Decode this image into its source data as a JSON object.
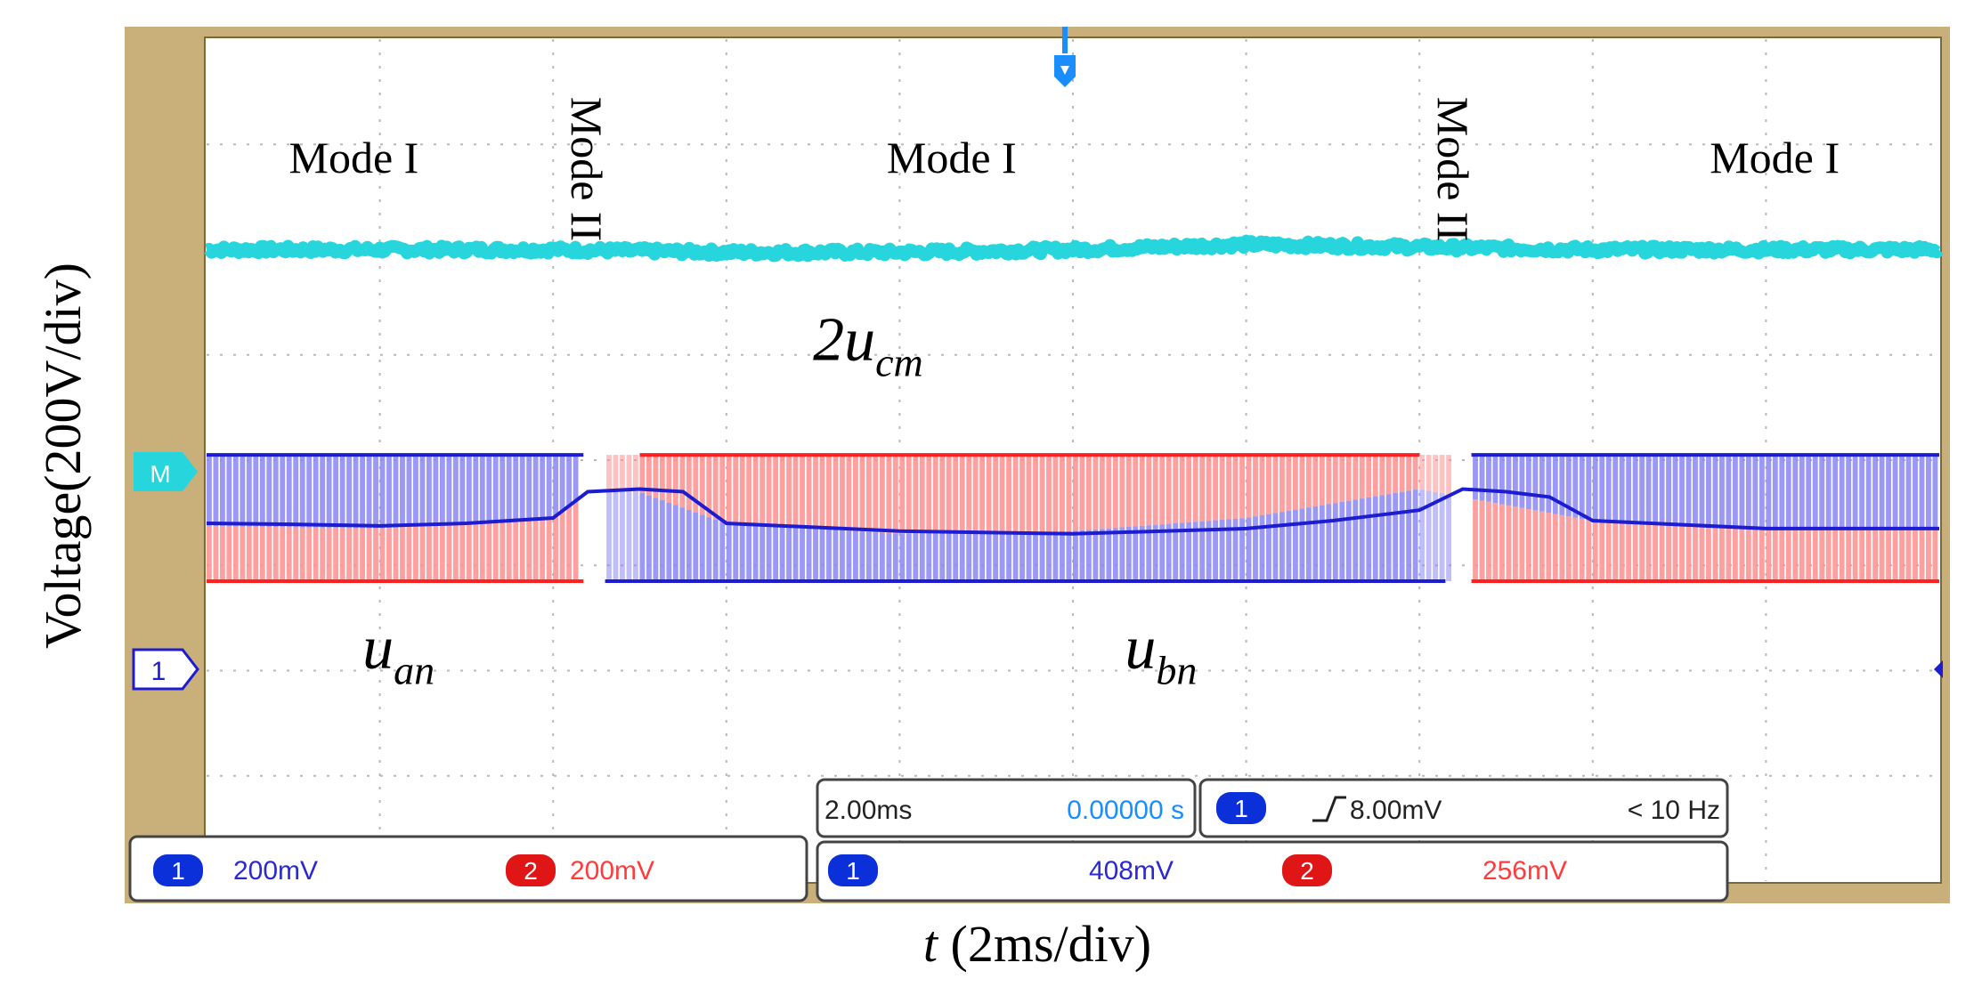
{
  "chart_data": {
    "type": "line",
    "title": "",
    "xlabel": "t (2ms/div)",
    "ylabel": "Voltage(200V/div)",
    "x_unit": "ms",
    "y_unit": "V",
    "grid": true,
    "xlim": [
      0,
      20
    ],
    "ylim": [
      -800,
      800
    ],
    "x_divisions": 10,
    "y_divisions": 8,
    "x_scale_per_div": 2,
    "y_scale_per_div": 200,
    "mode_labels": [
      {
        "text": "Mode I",
        "orientation": "horizontal",
        "x": 1.7
      },
      {
        "text": "Mode II",
        "orientation": "vertical",
        "x": 4.4
      },
      {
        "text": "Mode I",
        "orientation": "horizontal",
        "x": 8.6
      },
      {
        "text": "Mode II",
        "orientation": "vertical",
        "x": 14.4
      },
      {
        "text": "Mode I",
        "orientation": "horizontal",
        "x": 18.1
      }
    ],
    "series": [
      {
        "name": "2u_cm",
        "label_main": "2u",
        "label_sub": "cm",
        "color": "#26d6dc",
        "kind": "line",
        "label_x": 7.0,
        "label_y": 190,
        "x": [
          0,
          2,
          4,
          6,
          8,
          10,
          12,
          14,
          16,
          18,
          20
        ],
        "y": [
          400,
          400,
          400,
          395,
          395,
          400,
          410,
          405,
          400,
          400,
          400
        ]
      },
      {
        "name": "u_an",
        "label_main": "u",
        "label_sub": "an",
        "color": "#ff6a6a",
        "kind": "pwm",
        "label_x": 1.8,
        "label_y": -395,
        "x": [
          0,
          2,
          4,
          4.4,
          6,
          8,
          10,
          12,
          14,
          14.5,
          16,
          18,
          20
        ],
        "upper": [
          -50,
          -50,
          -50,
          0,
          10,
          10,
          10,
          10,
          10,
          0,
          -50,
          -50,
          -50
        ],
        "lower": [
          -230,
          -230,
          -230,
          -230,
          -230,
          -230,
          -230,
          -230,
          -230,
          -230,
          -230,
          -230,
          -230
        ],
        "envelope_top": [
          10,
          10,
          10,
          10,
          10,
          10,
          10,
          10,
          10,
          10,
          10,
          10,
          10
        ]
      },
      {
        "name": "u_bn",
        "label_main": "u",
        "label_sub": "bn",
        "color": "#4a48f0",
        "kind": "pwm",
        "label_x": 10.6,
        "label_y": -395,
        "x": [
          0,
          2,
          4,
          4.4,
          5,
          6,
          8,
          10,
          12,
          14,
          14.5,
          16,
          18,
          20
        ],
        "upper": [
          10,
          10,
          10,
          10,
          10,
          10,
          10,
          10,
          10,
          10,
          10,
          10,
          10,
          10
        ],
        "lower": [
          -230,
          -230,
          -230,
          -230,
          -230,
          -230,
          -230,
          -230,
          -230,
          -230,
          -230,
          -230,
          -230,
          -230
        ],
        "mid": [
          -125,
          -130,
          -110,
          -60,
          -60,
          -120,
          -140,
          -135,
          -110,
          -55,
          -70,
          -115,
          -130,
          -130
        ]
      },
      {
        "name": "u_an_mid",
        "label_main": "",
        "label_sub": "",
        "color": "#1c1cd0",
        "kind": "line",
        "x": [
          0,
          1,
          2,
          3,
          4,
          4.4,
          5,
          5.5,
          6,
          8,
          10,
          12,
          13,
          14,
          14.5,
          15,
          15.5,
          16,
          18,
          20
        ],
        "y": [
          -120,
          -122,
          -125,
          -120,
          -110,
          -60,
          -55,
          -60,
          -120,
          -135,
          -140,
          -130,
          -115,
          -95,
          -55,
          -60,
          -70,
          -115,
          -130,
          -130
        ]
      }
    ]
  },
  "scope": {
    "markers": {
      "channel1": "1",
      "math": "M"
    },
    "readout_left": {
      "ch1_badge": "1",
      "ch1_value": "200mV",
      "ch2_badge": "2",
      "ch2_value": "200mV"
    },
    "readout_timebase": {
      "time_div": "2.00ms",
      "position": "0.00000 s"
    },
    "readout_trigger": {
      "badge": "1",
      "level": "8.00mV",
      "freq": "< 10 Hz"
    },
    "readout_cursor": {
      "ch1_badge": "1",
      "ch1_value": "408mV",
      "ch2_badge": "2",
      "ch2_value": "256mV"
    }
  },
  "colors": {
    "bezel": "#c9b07a",
    "screen": "#ffffff",
    "grid": "#b8b8b8",
    "cyan": "#26d6dc",
    "red_fill": "#ff8f8f",
    "blue_fill": "#8a86f5",
    "blue_dark": "#1c1cd0",
    "red_line": "#ff2020",
    "badge_blue": "#0b2fd8",
    "badge_red": "#e01616",
    "readout_blue": "#2a2ad0",
    "readout_red": "#ff3b3b",
    "readout_cyan": "#1a8dff"
  }
}
